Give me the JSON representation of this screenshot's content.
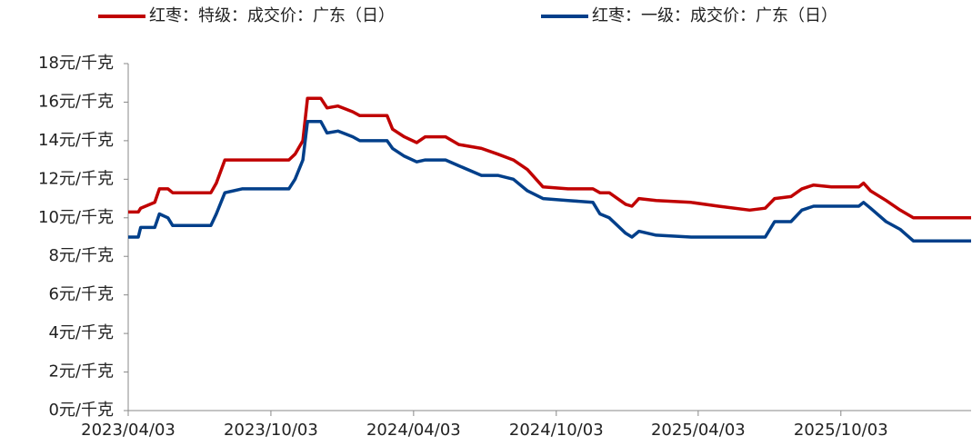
{
  "chart_data": {
    "type": "line",
    "x": [
      "2023/04/03",
      "2023/04/16",
      "2023/04/19",
      "2023/05/07",
      "2023/05/13",
      "2023/05/24",
      "2023/05/30",
      "2023/07/18",
      "2023/07/25",
      "2023/08/05",
      "2023/08/27",
      "2023/10/26",
      "2023/11/03",
      "2023/11/13",
      "2023/11/19",
      "2023/12/06",
      "2023/12/14",
      "2023/12/28",
      "2024/01/16",
      "2024/01/25",
      "2024/02/29",
      "2024/03/07",
      "2024/03/22",
      "2024/04/07",
      "2024/04/18",
      "2024/05/14",
      "2024/05/31",
      "2024/06/29",
      "2024/07/20",
      "2024/08/09",
      "2024/08/27",
      "2024/09/16",
      "2024/10/18",
      "2024/11/19",
      "2024/11/28",
      "2024/12/10",
      "2024/12/31",
      "2025/01/08",
      "2025/01/17",
      "2025/02/08",
      "2025/03/25",
      "2025/04/29",
      "2025/06/08",
      "2025/06/28",
      "2025/07/10",
      "2025/07/31",
      "2025/08/14",
      "2025/08/29",
      "2025/09/21",
      "2025/10/26",
      "2025/11/01",
      "2025/11/10",
      "2025/11/30",
      "2025/12/18",
      "2026/01/04",
      "2026/03/19"
    ],
    "series": [
      {
        "name": "红枣：特级：成交价：广东（日）",
        "color": "#c00000",
        "values": [
          10.3,
          10.3,
          10.5,
          10.8,
          11.5,
          11.5,
          11.3,
          11.3,
          11.8,
          13.0,
          13.0,
          13.0,
          13.3,
          14.0,
          16.2,
          16.2,
          15.7,
          15.8,
          15.5,
          15.3,
          15.3,
          14.6,
          14.2,
          13.9,
          14.2,
          14.2,
          13.8,
          13.6,
          13.3,
          13.0,
          12.5,
          11.6,
          11.5,
          11.5,
          11.3,
          11.3,
          10.7,
          10.6,
          11.0,
          10.9,
          10.8,
          10.6,
          10.4,
          10.5,
          11.0,
          11.1,
          11.5,
          11.7,
          11.6,
          11.6,
          11.8,
          11.4,
          10.9,
          10.4,
          10.0,
          10.0
        ]
      },
      {
        "name": "红枣：一级：成交价：广东（日）",
        "color": "#003f8a",
        "values": [
          9.0,
          9.0,
          9.5,
          9.5,
          10.2,
          10.0,
          9.6,
          9.6,
          10.2,
          11.3,
          11.5,
          11.5,
          12.0,
          13.0,
          15.0,
          15.0,
          14.4,
          14.5,
          14.2,
          14.0,
          14.0,
          13.6,
          13.2,
          12.9,
          13.0,
          13.0,
          12.7,
          12.2,
          12.2,
          12.0,
          11.4,
          11.0,
          10.9,
          10.8,
          10.2,
          10.0,
          9.2,
          9.0,
          9.3,
          9.1,
          9.0,
          9.0,
          9.0,
          9.0,
          9.8,
          9.8,
          10.4,
          10.6,
          10.6,
          10.6,
          10.8,
          10.5,
          9.8,
          9.4,
          8.8,
          8.8
        ]
      }
    ],
    "xlim": [
      "2023/04/03",
      "2026/03/19"
    ],
    "xticks": [
      "2023/04/03",
      "2023/10/03",
      "2024/04/03",
      "2024/10/03",
      "2025/04/03",
      "2025/10/03"
    ],
    "ylim": [
      0,
      18
    ],
    "yticks": [
      {
        "value": 0,
        "label": "0元/千克"
      },
      {
        "value": 2,
        "label": "2元/千克"
      },
      {
        "value": 4,
        "label": "4元/千克"
      },
      {
        "value": 6,
        "label": "6元/千克"
      },
      {
        "value": 8,
        "label": "8元/千克"
      },
      {
        "value": 10,
        "label": "10元/千克"
      },
      {
        "value": 12,
        "label": "12元/千克"
      },
      {
        "value": 14,
        "label": "14元/千克"
      },
      {
        "value": 16,
        "label": "16元/千克"
      },
      {
        "value": 18,
        "label": "18元/千克"
      }
    ],
    "legend": "top",
    "grid": false
  }
}
